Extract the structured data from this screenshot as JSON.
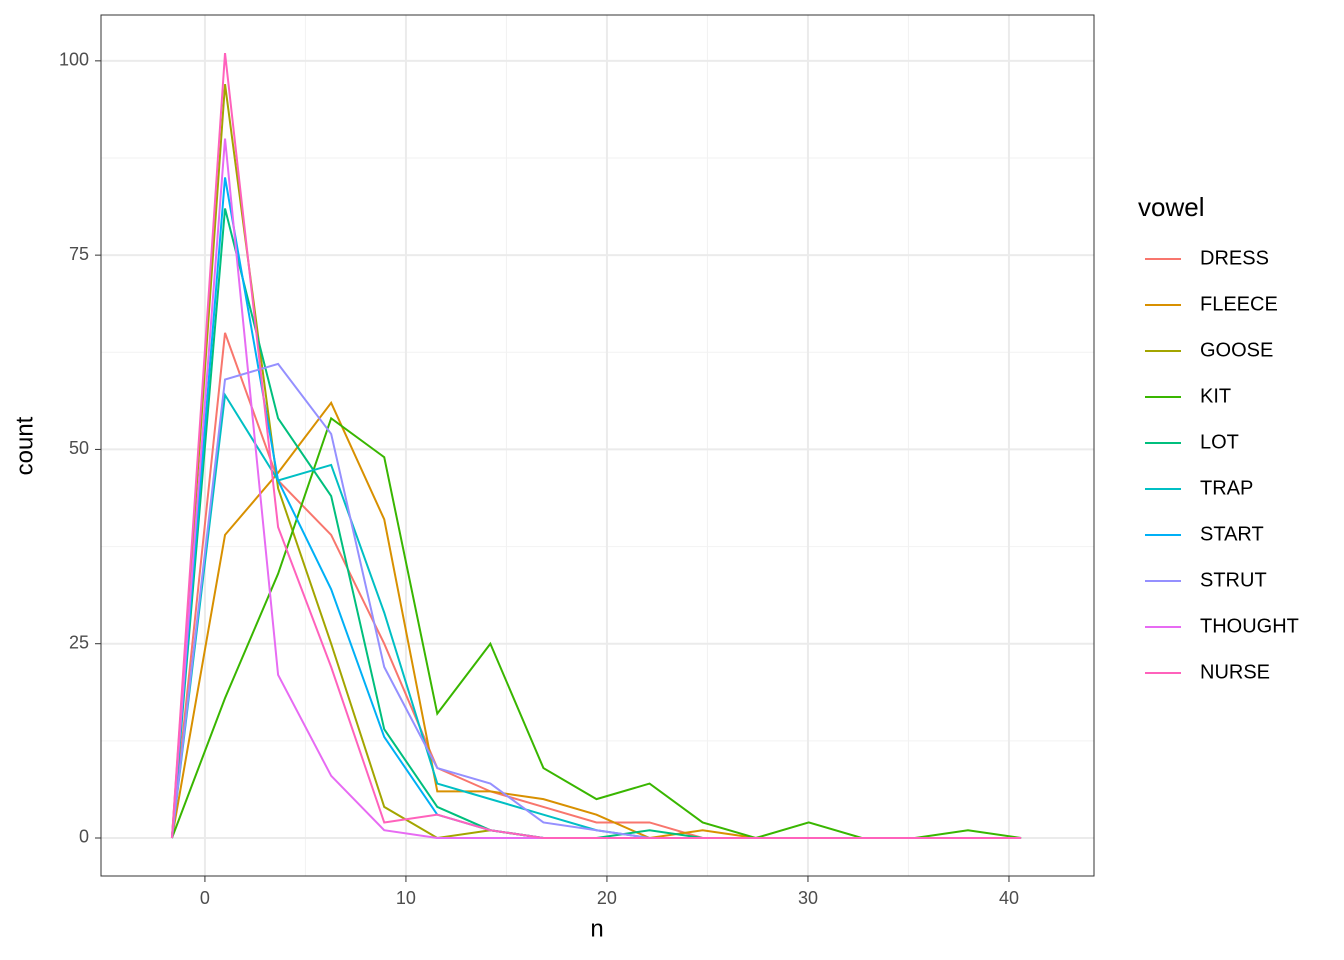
{
  "chart_data": {
    "type": "line",
    "x_label": "n",
    "y_label": "count",
    "legend_title": "vowel",
    "legend_position": "right",
    "x": [
      -1.64,
      1.0,
      3.64,
      6.28,
      8.92,
      11.56,
      14.2,
      16.84,
      19.48,
      22.12,
      24.76,
      27.4,
      30.04,
      32.68,
      35.32,
      37.96,
      40.6
    ],
    "xlim": [
      -5.17,
      44.23
    ],
    "xticks": [
      0,
      10,
      20,
      30,
      40
    ],
    "xminor": [
      5,
      15,
      25,
      35
    ],
    "ylim": [
      -4.89,
      105.9
    ],
    "yticks": [
      0,
      25,
      50,
      75,
      100
    ],
    "yminor": [
      12.5,
      37.5,
      62.5,
      87.5
    ],
    "grid": true,
    "series": [
      {
        "name": "DRESS",
        "color": "#F8766D",
        "values": [
          0,
          65,
          46,
          39,
          25,
          9,
          6,
          4,
          2,
          2,
          0,
          0,
          0,
          0,
          0,
          0,
          0
        ]
      },
      {
        "name": "FLEECE",
        "color": "#D89000",
        "values": [
          0,
          39,
          47,
          56,
          41,
          6,
          6,
          5,
          3,
          0,
          1,
          0,
          0,
          0,
          0,
          0,
          0
        ]
      },
      {
        "name": "GOOSE",
        "color": "#A3A500",
        "values": [
          0,
          97,
          45,
          25,
          4,
          0,
          1,
          0,
          0,
          0,
          0,
          0,
          0,
          0,
          0,
          0,
          0
        ]
      },
      {
        "name": "KIT",
        "color": "#39B600",
        "values": [
          0,
          18,
          34,
          54,
          49,
          16,
          25,
          9,
          5,
          7,
          2,
          0,
          2,
          0,
          0,
          1,
          0
        ]
      },
      {
        "name": "LOT",
        "color": "#00BF7D",
        "values": [
          0,
          81,
          54,
          44,
          14,
          4,
          1,
          0,
          0,
          1,
          0,
          0,
          0,
          0,
          0,
          0,
          0
        ]
      },
      {
        "name": "TRAP",
        "color": "#00BFC4",
        "values": [
          0,
          57,
          46,
          48,
          29,
          7,
          5,
          3,
          1,
          0,
          0,
          0,
          0,
          0,
          0,
          0,
          0
        ]
      },
      {
        "name": "START",
        "color": "#00B0F6",
        "values": [
          0,
          85,
          46,
          32,
          13,
          3,
          1,
          0,
          0,
          0,
          0,
          0,
          0,
          0,
          0,
          0,
          0
        ]
      },
      {
        "name": "STRUT",
        "color": "#9590FF",
        "values": [
          0,
          59,
          61,
          52,
          22,
          9,
          7,
          2,
          1,
          0,
          0,
          0,
          0,
          0,
          0,
          0,
          0
        ]
      },
      {
        "name": "THOUGHT",
        "color": "#E76BF3",
        "values": [
          0,
          90,
          21,
          8,
          1,
          0,
          0,
          0,
          0,
          0,
          0,
          0,
          0,
          0,
          0,
          0,
          0
        ]
      },
      {
        "name": "NURSE",
        "color": "#FF62BC",
        "values": [
          0,
          101,
          40,
          22,
          2,
          3,
          1,
          0,
          0,
          0,
          0,
          0,
          0,
          0,
          0,
          0,
          0
        ]
      }
    ]
  }
}
